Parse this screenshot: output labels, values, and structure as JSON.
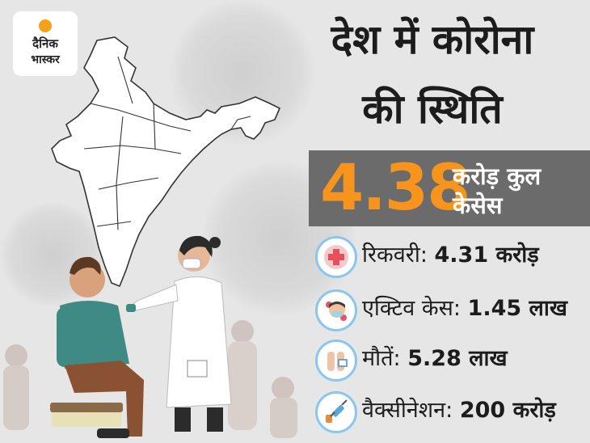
{
  "logo": {
    "line1": "दैनिक",
    "line2": "भास्कर"
  },
  "title": {
    "line1": "देश में कोरोना",
    "line2": "की स्थिति"
  },
  "total_cases": {
    "value": "4.38",
    "label_line1": "करोड़ कुल",
    "label_line2": "केसेस"
  },
  "stats": [
    {
      "label": "रिकवरी:",
      "value": "4.31 करोड़",
      "icon": "medical-cross-icon"
    },
    {
      "label": "एक्टिव केस:",
      "value": "1.45 लाख",
      "icon": "masked-face-icon"
    },
    {
      "label": "मौतें:",
      "value": "5.28 लाख",
      "icon": "feet-tag-icon"
    },
    {
      "label": "वैक्सीनेशन:",
      "value": "200 करोड़",
      "icon": "syringe-icon"
    }
  ],
  "colors": {
    "orange": "#f7941d",
    "bar": "#6b6b6b",
    "ring": "#8cc5ee",
    "background": "#e6e6e6"
  }
}
